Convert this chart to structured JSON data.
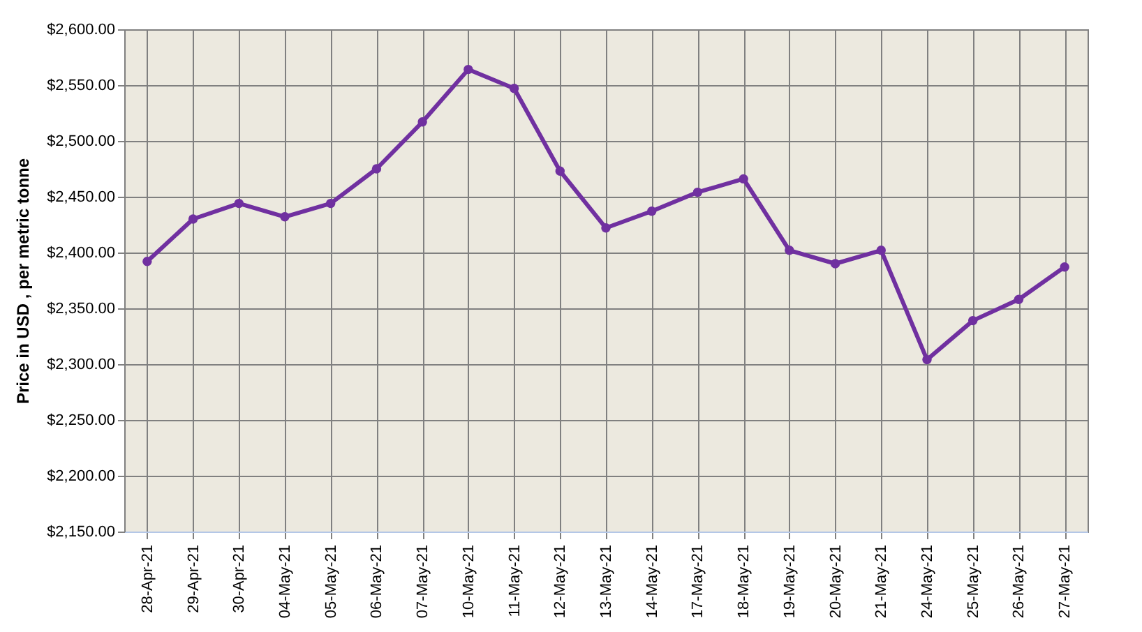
{
  "chart_data": {
    "type": "line",
    "ylabel": "Price in USD , per metric tonne",
    "categories": [
      "28-Apr-21",
      "29-Apr-21",
      "30-Apr-21",
      "04-May-21",
      "05-May-21",
      "06-May-21",
      "07-May-21",
      "10-May-21",
      "11-May-21",
      "12-May-21",
      "13-May-21",
      "14-May-21",
      "17-May-21",
      "18-May-21",
      "19-May-21",
      "20-May-21",
      "21-May-21",
      "24-May-21",
      "25-May-21",
      "26-May-21",
      "27-May-21"
    ],
    "series": [
      {
        "color": "#7030a0",
        "values": [
          2392,
          2430,
          2444,
          2432,
          2444,
          2475,
          2517,
          2564,
          2547,
          2473,
          2422,
          2437,
          2454,
          2466,
          2402,
          2390,
          2402,
          2304,
          2339,
          2358,
          2387
        ]
      }
    ],
    "ylim": [
      2150,
      2600
    ],
    "yticks": [
      {
        "value": 2150,
        "label": "$2,150.00"
      },
      {
        "value": 2200,
        "label": "$2,200.00"
      },
      {
        "value": 2250,
        "label": "$2,250.00"
      },
      {
        "value": 2300,
        "label": "$2,300.00"
      },
      {
        "value": 2350,
        "label": "$2,350.00"
      },
      {
        "value": 2400,
        "label": "$2,400.00"
      },
      {
        "value": 2450,
        "label": "$2,450.00"
      },
      {
        "value": 2500,
        "label": "$2,500.00"
      },
      {
        "value": 2550,
        "label": "$2,550.00"
      },
      {
        "value": 2600,
        "label": "$2,600.00"
      }
    ],
    "grid": true,
    "marker": "circle",
    "line_style": "solid"
  }
}
